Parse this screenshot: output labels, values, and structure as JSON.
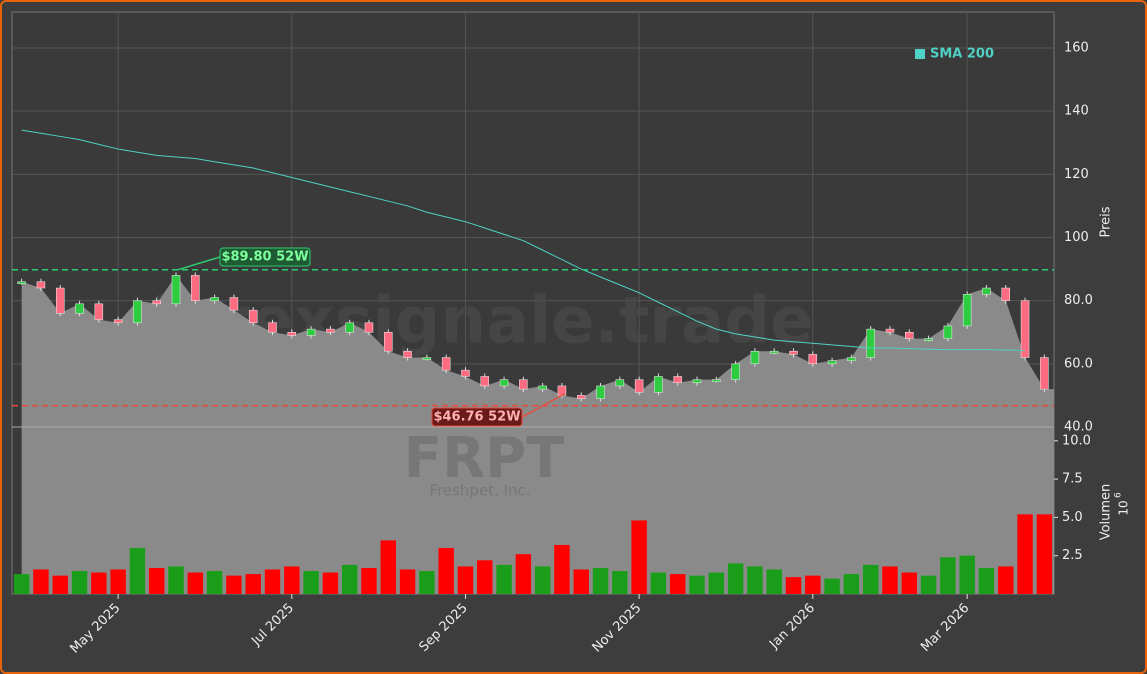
{
  "chart_data": [
    {
      "type": "candlestick",
      "watermark": "forexsignale.trade",
      "symbol": "FRPT",
      "company": "Freshpet, Inc.",
      "y_label": "Preis",
      "ylim": [
        40,
        171.4
      ],
      "yticks": [
        {
          "value": 40,
          "label": "40.0"
        },
        {
          "value": 60,
          "label": "60.0"
        },
        {
          "value": 80,
          "label": "80.0"
        },
        100,
        120,
        140,
        160
      ],
      "grid": true,
      "legend": "upper right",
      "up_color": "#2ecc40",
      "down_color": "#ff6b81",
      "area_color": "#8a8a8a",
      "values": [
        86,
        84,
        76,
        79,
        74,
        73,
        80,
        79,
        88,
        80,
        81,
        77,
        73,
        70,
        69,
        71,
        70,
        73,
        70,
        64,
        62,
        62,
        58,
        56,
        53,
        55,
        52,
        53,
        50,
        49,
        53,
        55,
        51,
        56,
        54,
        55,
        55,
        60,
        64,
        64,
        63,
        60,
        61,
        62,
        71,
        70,
        68,
        68,
        72,
        82,
        84,
        80,
        62,
        52
      ],
      "series": [
        {
          "name": "SMA 200",
          "color": "#4fd1c5",
          "values": [
            134,
            133,
            132,
            131,
            129.5,
            128,
            127,
            126,
            125.5,
            125,
            124,
            123,
            122,
            120.5,
            119,
            117.5,
            116,
            114.5,
            113,
            111.5,
            110,
            108,
            106.5,
            105,
            103,
            101,
            99,
            96,
            93,
            90,
            87.5,
            85,
            82.5,
            79.5,
            76.5,
            73.5,
            71,
            69.5,
            68.5,
            67.5,
            67,
            66.5,
            66,
            65.5,
            65,
            65,
            64.8,
            64.6,
            64.5,
            64.5,
            64.5,
            64.4,
            64.2,
            null
          ]
        }
      ],
      "hlines": [
        {
          "value": 89.8,
          "label": "$89.80 52W",
          "color": "#2ecc71"
        },
        {
          "value": 46.76,
          "label": "$46.76 52W",
          "color": "#e74c3c"
        }
      ]
    },
    {
      "type": "bar",
      "y_label": "Volumen",
      "y_scale": "10",
      "y_scale_exp": "6",
      "ylim": [
        0,
        10.9
      ],
      "yticks": [
        2.5,
        {
          "value": 5,
          "label": "5.0"
        },
        7.5,
        {
          "value": 10,
          "label": "10.0"
        }
      ],
      "up_color": "#1a9e1a",
      "down_color": "#ff0000",
      "categories": [
        null,
        null,
        null,
        null,
        null,
        "May 2025",
        null,
        null,
        null,
        null,
        null,
        null,
        null,
        null,
        "Jul 2025",
        null,
        null,
        null,
        null,
        null,
        null,
        null,
        null,
        "Sep 2025",
        null,
        null,
        null,
        null,
        null,
        null,
        null,
        null,
        "Nov 2025",
        null,
        null,
        null,
        null,
        null,
        null,
        null,
        null,
        "Jan 2026",
        null,
        null,
        null,
        null,
        null,
        null,
        null,
        "Mar 2026",
        null,
        null,
        null,
        null
      ],
      "values": [
        1.3,
        1.6,
        1.2,
        1.5,
        1.4,
        1.6,
        3.0,
        1.7,
        1.8,
        1.4,
        1.5,
        1.2,
        1.3,
        1.6,
        1.8,
        1.5,
        1.4,
        1.9,
        1.7,
        3.5,
        1.6,
        1.5,
        3.0,
        1.8,
        2.2,
        1.9,
        2.6,
        1.8,
        3.2,
        1.6,
        1.7,
        1.5,
        4.8,
        1.4,
        1.3,
        1.2,
        1.4,
        2.0,
        1.8,
        1.6,
        1.1,
        1.2,
        1.0,
        1.3,
        1.9,
        1.8,
        1.4,
        1.2,
        2.4,
        2.5,
        1.7,
        1.8,
        5.2,
        5.2
      ]
    }
  ]
}
